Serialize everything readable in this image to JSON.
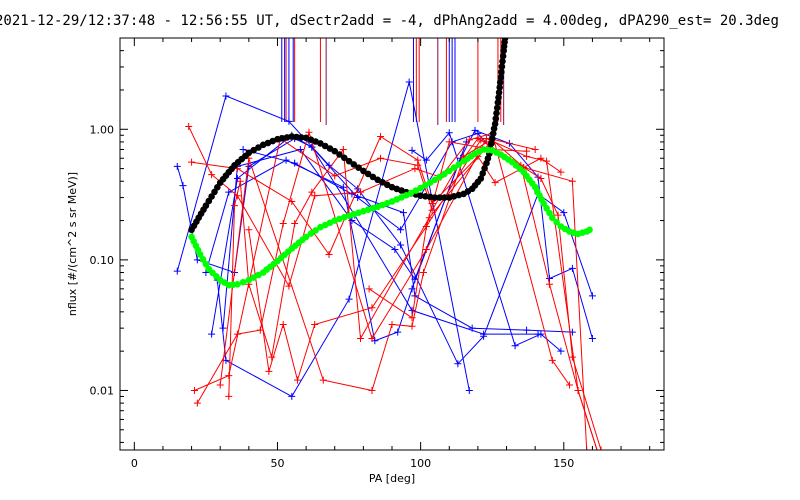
{
  "chart_data": {
    "type": "line",
    "title": "2021-12-29/12:37:48 - 12:56:55 UT, dSectr2add = -4, dPhAng2add = 4.00deg, dPA290_est= 20.3deg",
    "xlabel": "PA [deg]",
    "ylabel": "nflux [#/(cm^2 s sr MeV)]",
    "xlim": [
      -5,
      185
    ],
    "ylim": [
      0.0035,
      5.0
    ],
    "yscale": "log",
    "x_ticks": [
      0,
      50,
      100,
      150
    ],
    "x_tick_labels": [
      "0",
      "50",
      "100",
      "150"
    ],
    "y_ticks": [
      0.01,
      0.1,
      1.0
    ],
    "y_tick_labels": [
      "0.01",
      "0.10",
      "1.00"
    ],
    "colors": {
      "blue": "#0000ff",
      "red": "#ff0000",
      "black": "#000000",
      "green": "#00ff00"
    },
    "series": [
      {
        "color": "blue",
        "style": "line+plus",
        "segments": [
          [
            [
              15,
              0.52
            ],
            [
              17,
              0.37
            ],
            [
              22,
              0.1
            ],
            [
              35,
              0.08
            ],
            [
              40,
              0.52
            ],
            [
              56,
              0.85
            ],
            [
              62,
              0.73
            ],
            [
              78,
              0.3
            ],
            [
              93,
              0.17
            ],
            [
              111,
              0.8
            ],
            [
              120,
              0.93
            ],
            [
              125,
              0.7
            ]
          ],
          [
            [
              15,
              0.082
            ],
            [
              32,
              1.8
            ],
            [
              54,
              1.15
            ],
            [
              68,
              0.53
            ],
            [
              78,
              0.35
            ],
            [
              93,
              0.13
            ],
            [
              113,
              0.016
            ],
            [
              122,
              0.026
            ],
            [
              141,
              0.32
            ],
            [
              150,
              0.23
            ],
            [
              160,
              0.053
            ]
          ],
          [
            [
              27,
              0.027
            ],
            [
              36,
              0.42
            ],
            [
              55,
              0.9
            ],
            [
              62,
              0.73
            ],
            [
              77,
              0.22
            ],
            [
              97,
              0.041
            ],
            [
              122,
              0.027
            ],
            [
              141,
              0.027
            ]
          ],
          [
            [
              29,
              0.07
            ],
            [
              32,
              0.017
            ],
            [
              55,
              0.009
            ],
            [
              75,
              0.05
            ],
            [
              96,
              2.3
            ],
            [
              117,
              0.01
            ]
          ],
          [
            [
              25,
              0.08
            ],
            [
              33,
              0.33
            ],
            [
              53,
              0.58
            ],
            [
              73,
              0.36
            ],
            [
              84,
              0.024
            ],
            [
              92,
              0.028
            ],
            [
              97,
              0.06
            ],
            [
              116,
              0.8
            ]
          ],
          [
            [
              31,
              0.03
            ],
            [
              36,
              0.52
            ],
            [
              58,
              0.7
            ],
            [
              76,
              0.2
            ],
            [
              91,
              0.12
            ],
            [
              98,
              0.071
            ],
            [
              114,
              0.6
            ],
            [
              119,
              0.98
            ],
            [
              131,
              0.78
            ],
            [
              141,
              0.43
            ],
            [
              145,
              0.072
            ],
            [
              153,
              0.086
            ],
            [
              160,
              0.025
            ]
          ],
          [
            [
              38,
              0.7
            ],
            [
              56,
              0.55
            ],
            [
              76,
              0.32
            ],
            [
              94,
              0.23
            ],
            [
              98,
              0.053
            ],
            [
              118,
              0.03
            ],
            [
              137,
              0.029
            ],
            [
              153,
              0.028
            ]
          ],
          [
            [
              97,
              0.69
            ],
            [
              102,
              0.58
            ],
            [
              110,
              0.94
            ],
            [
              133,
              0.022
            ],
            [
              142,
              0.027
            ],
            [
              149,
              0.02
            ]
          ]
        ]
      },
      {
        "color": "red",
        "style": "line+plus",
        "segments": [
          [
            [
              19,
              1.05
            ],
            [
              27,
              0.45
            ],
            [
              36,
              0.31
            ],
            [
              54,
              0.063
            ],
            [
              63,
              0.31
            ],
            [
              79,
              0.33
            ],
            [
              98,
              0.5
            ],
            [
              107,
              0.43
            ],
            [
              117,
              0.83
            ],
            [
              125,
              0.93
            ],
            [
              146,
              0.017
            ],
            [
              152,
              0.011
            ]
          ],
          [
            [
              20,
              0.56
            ],
            [
              36,
              0.5
            ],
            [
              55,
              0.28
            ],
            [
              68,
              0.11
            ],
            [
              86,
              0.88
            ],
            [
              99,
              0.58
            ],
            [
              104,
              0.27
            ],
            [
              120,
              0.62
            ],
            [
              126,
              0.39
            ],
            [
              142,
              0.6
            ],
            [
              149,
              0.47
            ]
          ],
          [
            [
              21,
              0.01
            ],
            [
              33,
              0.013
            ],
            [
              51,
              0.85
            ],
            [
              70,
              0.44
            ],
            [
              86,
              0.6
            ],
            [
              99,
              0.53
            ],
            [
              104,
              0.24
            ],
            [
              115,
              0.62
            ],
            [
              125,
              0.84
            ],
            [
              140,
              0.7
            ]
          ],
          [
            [
              22,
              0.008
            ],
            [
              36,
              0.027
            ],
            [
              44,
              0.029
            ],
            [
              52,
              0.19
            ],
            [
              61,
              0.95
            ],
            [
              83,
              0.025
            ],
            [
              102,
              0.12
            ],
            [
              123,
              0.85
            ],
            [
              137,
              0.62
            ],
            [
              144,
              0.57
            ],
            [
              155,
              0.01
            ],
            [
              162,
              0.0033
            ]
          ],
          [
            [
              33,
              0.009
            ],
            [
              35,
              0.26
            ],
            [
              37,
              0.4
            ],
            [
              40,
              0.065
            ],
            [
              48,
              0.018
            ],
            [
              56,
              0.19
            ],
            [
              62,
              0.33
            ],
            [
              73,
              0.7
            ],
            [
              79,
              0.025
            ],
            [
              103,
              0.21
            ],
            [
              125,
              0.83
            ],
            [
              136,
              0.51
            ],
            [
              153,
              0.4
            ],
            [
              158,
              0.0035
            ]
          ],
          [
            [
              30,
              0.011
            ],
            [
              40,
              0.6
            ],
            [
              66,
              0.012
            ],
            [
              83,
              0.01
            ],
            [
              90,
              0.032
            ],
            [
              97,
              0.031
            ],
            [
              101,
              0.08
            ],
            [
              115,
              0.6
            ],
            [
              120,
              0.85
            ],
            [
              135,
              0.53
            ],
            [
              145,
              0.065
            ],
            [
              155,
              0.01
            ],
            [
              162,
              0.0033
            ]
          ],
          [
            [
              40,
              0.17
            ],
            [
              47,
              0.014
            ],
            [
              52,
              0.032
            ],
            [
              57,
              0.012
            ],
            [
              63,
              0.032
            ],
            [
              83,
              0.043
            ],
            [
              102,
              0.18
            ],
            [
              121,
              0.83
            ],
            [
              142,
              0.42
            ],
            [
              148,
              0.22
            ],
            [
              153,
              0.018
            ],
            [
              163,
              0.0035
            ]
          ],
          [
            [
              82,
              0.06
            ],
            [
              97,
              0.036
            ],
            [
              102,
              0.18
            ],
            [
              110,
              0.8
            ],
            [
              125,
              0.7
            ],
            [
              137,
              0.68
            ]
          ]
        ]
      },
      {
        "color": "black",
        "style": "thick-dots",
        "points": [
          [
            20,
            0.17
          ],
          [
            25,
            0.26
          ],
          [
            30,
            0.39
          ],
          [
            35,
            0.53
          ],
          [
            40,
            0.66
          ],
          [
            45,
            0.76
          ],
          [
            50,
            0.84
          ],
          [
            55,
            0.88
          ],
          [
            60,
            0.86
          ],
          [
            65,
            0.78
          ],
          [
            70,
            0.68
          ],
          [
            75,
            0.57
          ],
          [
            80,
            0.48
          ],
          [
            85,
            0.41
          ],
          [
            90,
            0.36
          ],
          [
            95,
            0.33
          ],
          [
            100,
            0.31
          ],
          [
            105,
            0.3
          ],
          [
            110,
            0.3
          ],
          [
            115,
            0.32
          ],
          [
            118,
            0.35
          ],
          [
            121,
            0.42
          ],
          [
            123,
            0.55
          ],
          [
            124,
            0.65
          ],
          [
            125,
            0.85
          ],
          [
            126,
            1.1
          ],
          [
            127,
            1.6
          ],
          [
            128,
            2.5
          ],
          [
            129,
            4.0
          ],
          [
            129.5,
            5.0
          ]
        ]
      },
      {
        "color": "green",
        "style": "thick-dots",
        "points": [
          [
            20,
            0.15
          ],
          [
            23,
            0.11
          ],
          [
            26,
            0.085
          ],
          [
            30,
            0.07
          ],
          [
            33,
            0.064
          ],
          [
            36,
            0.065
          ],
          [
            40,
            0.07
          ],
          [
            45,
            0.08
          ],
          [
            50,
            0.098
          ],
          [
            55,
            0.122
          ],
          [
            60,
            0.15
          ],
          [
            65,
            0.178
          ],
          [
            70,
            0.2
          ],
          [
            75,
            0.218
          ],
          [
            80,
            0.236
          ],
          [
            85,
            0.255
          ],
          [
            90,
            0.28
          ],
          [
            95,
            0.312
          ],
          [
            100,
            0.355
          ],
          [
            105,
            0.41
          ],
          [
            110,
            0.48
          ],
          [
            115,
            0.57
          ],
          [
            119,
            0.65
          ],
          [
            122,
            0.7
          ],
          [
            125,
            0.69
          ],
          [
            128,
            0.64
          ],
          [
            132,
            0.56
          ],
          [
            136,
            0.47
          ],
          [
            140,
            0.36
          ],
          [
            143,
            0.27
          ],
          [
            146,
            0.21
          ],
          [
            149,
            0.18
          ],
          [
            152,
            0.165
          ],
          [
            155,
            0.158
          ],
          [
            158,
            0.165
          ],
          [
            159,
            0.17
          ]
        ]
      }
    ],
    "vertical_markers": [
      {
        "color": "blue",
        "x": [
          51.5,
          52.5,
          54,
          55.5,
          97.5,
          110,
          111,
          112
        ]
      },
      {
        "color": "red",
        "x": [
          53,
          56,
          65,
          98.5,
          99.5,
          109,
          120,
          127,
          128
        ]
      },
      {
        "color": "purple",
        "x": [
          67,
          106,
          129
        ]
      }
    ]
  }
}
